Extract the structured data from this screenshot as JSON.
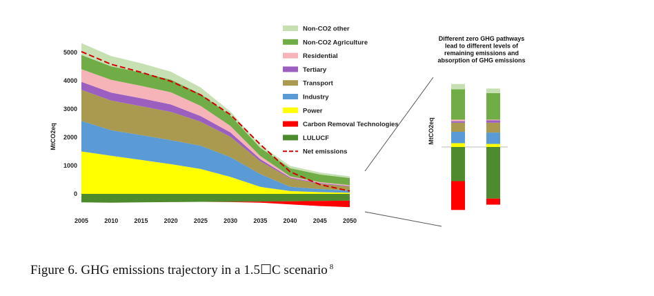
{
  "chart_data": [
    {
      "type": "area",
      "stacked": true,
      "x": [
        2005,
        2010,
        2015,
        2020,
        2025,
        2030,
        2035,
        2040,
        2045,
        2050
      ],
      "xticks": [
        "2005",
        "2010",
        "2015",
        "2020",
        "2025",
        "2030",
        "2035",
        "2040",
        "2045",
        "2050"
      ],
      "ylabel": "MtCO2eq",
      "ylim": [
        -500,
        5500
      ],
      "yticks": [
        "0",
        "1000",
        "2000",
        "3000",
        "4000",
        "5000"
      ],
      "grid": false,
      "legend_position": "right",
      "series": [
        {
          "name": "LULUCF",
          "color": "#4e8a2e",
          "values": [
            -300,
            -310,
            -300,
            -290,
            -280,
            -280,
            -270,
            -260,
            -250,
            -240
          ]
        },
        {
          "name": "Carbon Removal Technologies",
          "color": "#ff0000",
          "values": [
            0,
            0,
            0,
            0,
            0,
            -10,
            -40,
            -110,
            -180,
            -230
          ]
        },
        {
          "name": "Power",
          "color": "#ffff00",
          "values": [
            1500,
            1350,
            1200,
            1050,
            880,
            600,
            250,
            100,
            60,
            40
          ]
        },
        {
          "name": "Industry",
          "color": "#5b9bd5",
          "values": [
            1080,
            900,
            880,
            850,
            820,
            700,
            450,
            150,
            110,
            80
          ]
        },
        {
          "name": "Transport",
          "color": "#a99a50",
          "values": [
            1100,
            1050,
            1020,
            1000,
            850,
            720,
            450,
            300,
            190,
            140
          ]
        },
        {
          "name": "Tertiary",
          "color": "#9b5fc0",
          "values": [
            280,
            280,
            280,
            260,
            200,
            150,
            80,
            30,
            25,
            20
          ]
        },
        {
          "name": "Residential",
          "color": "#f6b4b9",
          "values": [
            450,
            450,
            440,
            430,
            360,
            230,
            110,
            40,
            30,
            30
          ]
        },
        {
          "name": "Non-CO2 Agriculture",
          "color": "#70ad47",
          "values": [
            500,
            480,
            470,
            450,
            420,
            370,
            290,
            290,
            270,
            250
          ]
        },
        {
          "name": "Non-CO2 other",
          "color": "#c6e0b4",
          "values": [
            420,
            360,
            330,
            280,
            230,
            140,
            95,
            80,
            70,
            60
          ]
        }
      ],
      "lines": [
        {
          "name": "Net emissions",
          "color": "#d00000",
          "style": "dashed",
          "values": [
            5030,
            4580,
            4300,
            3980,
            3500,
            2800,
            1750,
            780,
            330,
            100
          ]
        }
      ]
    },
    {
      "type": "bar",
      "stacked": true,
      "ylabel": "MtCO2eq",
      "annotation": "Different zero GHG pathways lead to different levels of remaining emissions and absorption of GHG emissions",
      "bars": [
        {
          "positive": [
            {
              "series": "Power",
              "value": 50,
              "color": "#ffff00"
            },
            {
              "series": "Industry",
              "value": 150,
              "color": "#5b9bd5"
            },
            {
              "series": "Transport",
              "value": 120,
              "color": "#a99a50"
            },
            {
              "series": "Tertiary",
              "value": 20,
              "color": "#9b5fc0"
            },
            {
              "series": "Residential",
              "value": 20,
              "color": "#f6b4b9"
            },
            {
              "series": "Non-CO2 Agriculture",
              "value": 400,
              "color": "#70ad47"
            },
            {
              "series": "Non-CO2 other",
              "value": 70,
              "color": "#c6e0b4"
            }
          ],
          "negative": [
            {
              "series": "LULUCF",
              "value": -450,
              "color": "#4e8a2e"
            },
            {
              "series": "Carbon Removal Technologies",
              "value": -380,
              "color": "#ff0000"
            }
          ]
        },
        {
          "positive": [
            {
              "series": "Power",
              "value": 40,
              "color": "#ffff00"
            },
            {
              "series": "Industry",
              "value": 150,
              "color": "#5b9bd5"
            },
            {
              "series": "Transport",
              "value": 130,
              "color": "#a99a50"
            },
            {
              "series": "Tertiary",
              "value": 30,
              "color": "#9b5fc0"
            },
            {
              "series": "Residential",
              "value": 10,
              "color": "#f6b4b9"
            },
            {
              "series": "Non-CO2 Agriculture",
              "value": 350,
              "color": "#70ad47"
            },
            {
              "series": "Non-CO2 other",
              "value": 60,
              "color": "#c6e0b4"
            }
          ],
          "negative": [
            {
              "series": "LULUCF",
              "value": -680,
              "color": "#4e8a2e"
            },
            {
              "series": "Carbon Removal Technologies",
              "value": -80,
              "color": "#ff0000"
            }
          ]
        }
      ]
    }
  ],
  "legend": [
    "Non-CO2 other",
    "Non-CO2 Agriculture",
    "Residential",
    "Tertiary",
    "Transport",
    "Industry",
    "Power",
    "Carbon Removal Technologies",
    "LULUCF",
    "Net emissions"
  ],
  "caption": {
    "text": "Figure 6. GHG emissions trajectory in a 1.5☐C scenario",
    "footnote": "8"
  }
}
